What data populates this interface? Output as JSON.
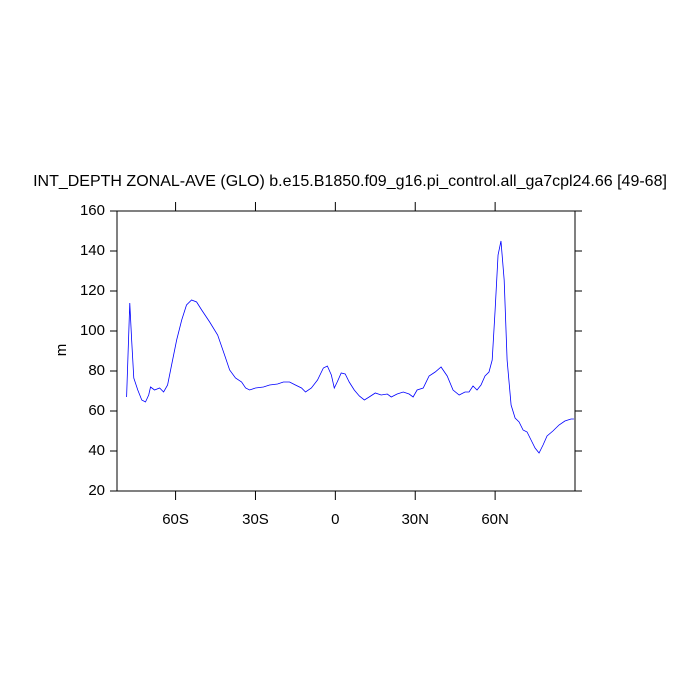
{
  "chart_data": {
    "type": "line",
    "title": "INT_DEPTH ZONAL-AVE (GLO) b.e15.B1850.f09_g16.pi_control.all_ga7cpl24.66 [49-68]",
    "y_label": "m",
    "x": [
      -78.4,
      -77.2,
      -76.5,
      -75.7,
      -74.2,
      -72.7,
      -71.3,
      -70.1,
      -69.4,
      -67.9,
      -66,
      -64.5,
      -63,
      -61.5,
      -59.6,
      -57.7,
      -55.9,
      -54,
      -52.1,
      -50.2,
      -47.2,
      -44.2,
      -41.6,
      -39.7,
      -37.5,
      -35.2,
      -33.7,
      -32.2,
      -30,
      -27,
      -24.7,
      -21.7,
      -19.5,
      -17.2,
      -15,
      -12.7,
      -11.2,
      -9,
      -6.7,
      -4.5,
      -3,
      -1.5,
      -0.4,
      0.7,
      2.2,
      3.7,
      5.2,
      7.1,
      9,
      10.9,
      12.7,
      15,
      17.2,
      19.5,
      21,
      23.2,
      25.5,
      27.7,
      29.2,
      30.7,
      33,
      35.2,
      37.5,
      39.7,
      42,
      44.2,
      46.5,
      48.7,
      50.2,
      51.7,
      53.2,
      54.7,
      56.2,
      57.7,
      58.9,
      60,
      61.1,
      62.2,
      63.4,
      64.5,
      66,
      67.5,
      69,
      70.5,
      72,
      73.5,
      75,
      76.5,
      78,
      79.5,
      81.7,
      84,
      86.2,
      88.5,
      89.6
    ],
    "series": [
      {
        "name": "INT_DEPTH",
        "color": "#0000ff",
        "values": [
          67,
          114,
          95.5,
          76.5,
          70.5,
          65.5,
          64.5,
          68,
          72,
          70.5,
          71.5,
          69.5,
          73,
          83,
          95.5,
          105.5,
          113,
          115.5,
          114.5,
          110.5,
          104.5,
          98,
          88,
          80.5,
          76.5,
          74.5,
          71.5,
          70.5,
          71.5,
          72,
          73,
          73.5,
          74.5,
          74.5,
          73,
          71.5,
          69.5,
          71.5,
          75.5,
          81.5,
          82.5,
          78,
          71.5,
          74.5,
          79,
          78.5,
          74.5,
          70.5,
          67.5,
          65.5,
          67,
          69,
          68,
          68.5,
          67,
          68.5,
          69.5,
          68.5,
          67,
          70.5,
          71.5,
          77.5,
          79.5,
          82,
          77.5,
          70.5,
          68,
          69.5,
          69.5,
          72.5,
          70.5,
          73,
          77.5,
          79.5,
          85.5,
          110.5,
          138,
          145,
          125.5,
          85.5,
          63,
          56.5,
          54.5,
          50.5,
          49.5,
          45.5,
          41.5,
          39,
          43,
          47.5,
          50,
          53,
          55,
          56,
          56
        ]
      }
    ],
    "xlim": [
      -82,
      90
    ],
    "xticks": [
      {
        "value": -60,
        "label": "60S"
      },
      {
        "value": -30,
        "label": "30S"
      },
      0,
      {
        "value": 30,
        "label": "30N"
      },
      {
        "value": 60,
        "label": "60N"
      }
    ],
    "ylim": [
      20,
      160
    ],
    "yticks": [
      20,
      40,
      60,
      80,
      100,
      120,
      140,
      160
    ]
  }
}
